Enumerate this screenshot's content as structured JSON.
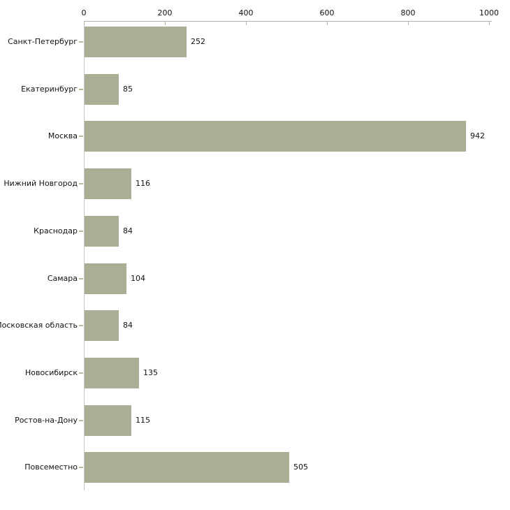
{
  "chart_data": {
    "type": "bar",
    "orientation": "horizontal",
    "title": "",
    "xlabel": "",
    "ylabel": "",
    "categories": [
      "Санкт-Петербург",
      "Екатеринбург",
      "Москва",
      "Нижний Новгород",
      "Краснодар",
      "Самара",
      "Московская область",
      "Новосибирск",
      "Ростов-на-Дону",
      "Повсеместно"
    ],
    "values": [
      252,
      85,
      942,
      116,
      84,
      104,
      84,
      135,
      115,
      505
    ],
    "value_labels": [
      "252",
      "85",
      "942",
      "116",
      "84",
      "104",
      "84",
      "135",
      "115",
      "505"
    ],
    "x_ticks": [
      0,
      200,
      400,
      600,
      800,
      1000
    ],
    "x_tick_labels": [
      "0",
      "200",
      "400",
      "600",
      "800",
      "1000"
    ],
    "xlim": [
      0,
      1000
    ],
    "grid": false,
    "legend": false,
    "colors": {
      "bar_fill": "#a9af94",
      "x_axis_line": "#b3b3b3",
      "y_axis_line": "#c6c6c6",
      "tick_mark": "#b7b99b",
      "text": "#111111",
      "background": "#ffffff"
    }
  }
}
